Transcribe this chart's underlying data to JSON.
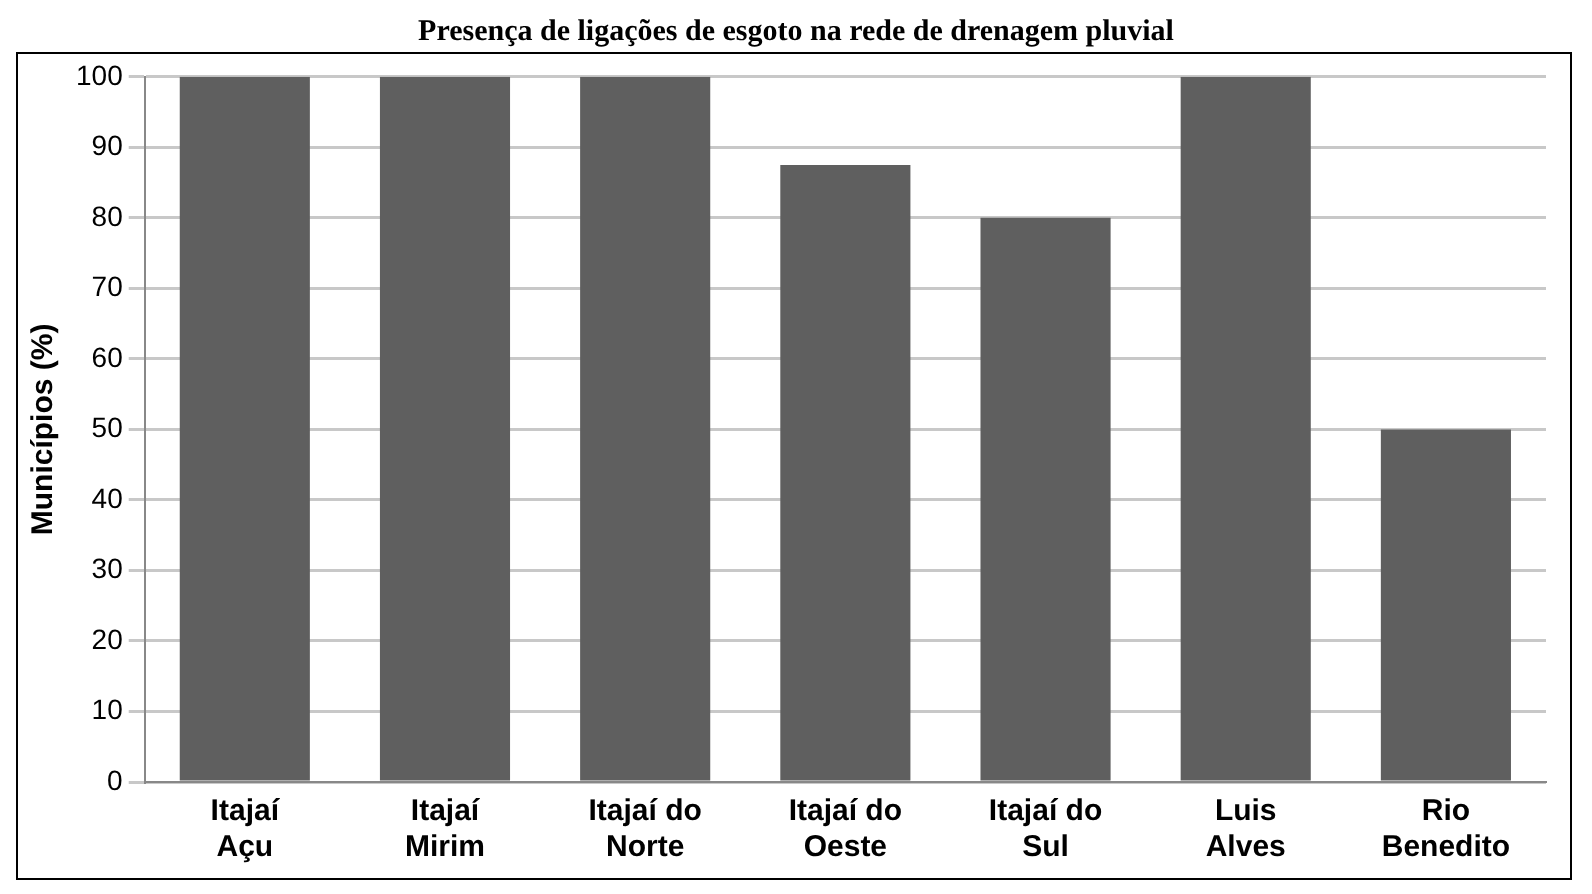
{
  "chart_data": {
    "type": "bar",
    "title": "Presença de ligações de esgoto na rede de drenagem pluvial",
    "ylabel": "Municípios (%)",
    "categories": [
      "Itajaí Açu",
      "Itajaí Mirim",
      "Itajaí do Norte",
      "Itajaí do Oeste",
      "Itajaí do Sul",
      "Luis Alves",
      "Rio Benedito"
    ],
    "values": [
      100,
      100,
      100,
      87.5,
      80,
      100,
      50
    ],
    "color": "#5f5f5f",
    "ylim": [
      0,
      100
    ],
    "yticks": [
      0,
      10,
      20,
      30,
      40,
      50,
      60,
      70,
      80,
      90,
      100
    ],
    "grid": "y",
    "legend": false
  }
}
